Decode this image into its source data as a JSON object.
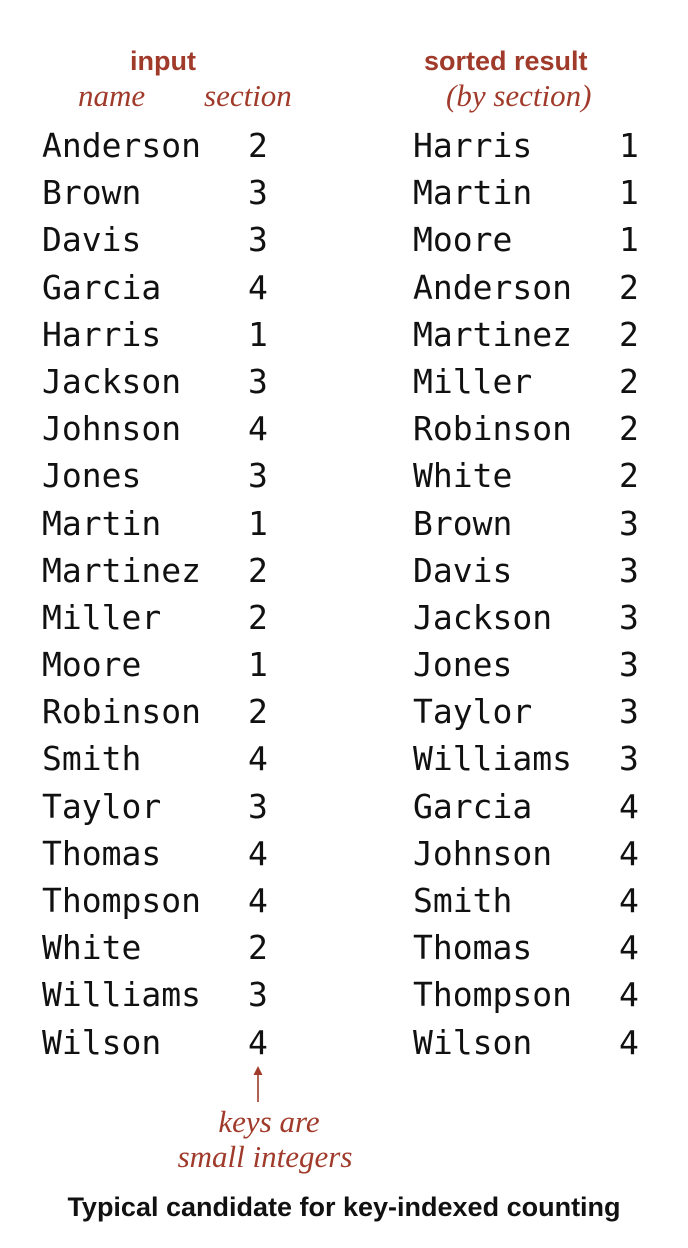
{
  "headers": {
    "input_title": "input",
    "input_name_label": "name",
    "input_section_label": "section",
    "sorted_title": "sorted result",
    "sorted_subtitle": "(by section)"
  },
  "input": [
    {
      "name": "Anderson",
      "section": "2"
    },
    {
      "name": "Brown",
      "section": "3"
    },
    {
      "name": "Davis",
      "section": "3"
    },
    {
      "name": "Garcia",
      "section": "4"
    },
    {
      "name": "Harris",
      "section": "1"
    },
    {
      "name": "Jackson",
      "section": "3"
    },
    {
      "name": "Johnson",
      "section": "4"
    },
    {
      "name": "Jones",
      "section": "3"
    },
    {
      "name": "Martin",
      "section": "1"
    },
    {
      "name": "Martinez",
      "section": "2"
    },
    {
      "name": "Miller",
      "section": "2"
    },
    {
      "name": "Moore",
      "section": "1"
    },
    {
      "name": "Robinson",
      "section": "2"
    },
    {
      "name": "Smith",
      "section": "4"
    },
    {
      "name": "Taylor",
      "section": "3"
    },
    {
      "name": "Thomas",
      "section": "4"
    },
    {
      "name": "Thompson",
      "section": "4"
    },
    {
      "name": "White",
      "section": "2"
    },
    {
      "name": "Williams",
      "section": "3"
    },
    {
      "name": "Wilson",
      "section": "4"
    }
  ],
  "sorted": [
    {
      "name": "Harris",
      "section": "1"
    },
    {
      "name": "Martin",
      "section": "1"
    },
    {
      "name": "Moore",
      "section": "1"
    },
    {
      "name": "Anderson",
      "section": "2"
    },
    {
      "name": "Martinez",
      "section": "2"
    },
    {
      "name": "Miller",
      "section": "2"
    },
    {
      "name": "Robinson",
      "section": "2"
    },
    {
      "name": "White",
      "section": "2"
    },
    {
      "name": "Brown",
      "section": "3"
    },
    {
      "name": "Davis",
      "section": "3"
    },
    {
      "name": "Jackson",
      "section": "3"
    },
    {
      "name": "Jones",
      "section": "3"
    },
    {
      "name": "Taylor",
      "section": "3"
    },
    {
      "name": "Williams",
      "section": "3"
    },
    {
      "name": "Garcia",
      "section": "4"
    },
    {
      "name": "Johnson",
      "section": "4"
    },
    {
      "name": "Smith",
      "section": "4"
    },
    {
      "name": "Thomas",
      "section": "4"
    },
    {
      "name": "Thompson",
      "section": "4"
    },
    {
      "name": "Wilson",
      "section": "4"
    }
  ],
  "annotation": {
    "line1": "keys are",
    "line2": "small integers",
    "arrow_icon": "up-arrow"
  },
  "caption": "Typical candidate for key-indexed counting",
  "colors": {
    "accent": "#a03a2a",
    "text": "#111111"
  }
}
